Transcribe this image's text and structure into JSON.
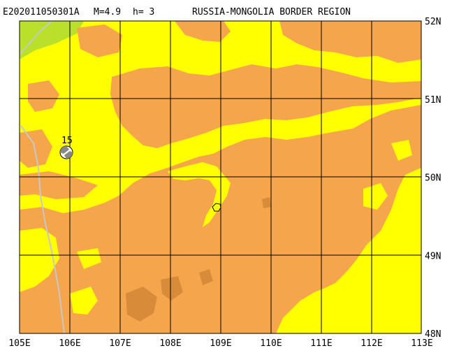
{
  "title": {
    "event_id": "E202011050301A",
    "magnitude": "M=4.9",
    "depth": "h=  3",
    "region": "RUSSIA-MONGOLIA BORDER REGION"
  },
  "axes": {
    "longitude_labels": [
      "105E",
      "106E",
      "107E",
      "108E",
      "109E",
      "110E",
      "111E",
      "112E",
      "113E"
    ],
    "latitude_labels": [
      "52N",
      "51N",
      "50N",
      "49N",
      "48N"
    ]
  },
  "beachball": {
    "label": "15"
  },
  "colors": {
    "lowland": "#ffff00",
    "highland": "#f5a54b",
    "dark_relief": "#d88c3a",
    "green_area": "#b9e02a",
    "grid": "#000000",
    "border_line": "#c8c8c8",
    "epicenter": "#ffff00"
  },
  "icons": {
    "epicenter": "hexagon-marker-icon",
    "focal_mechanism": "beachball-icon"
  }
}
